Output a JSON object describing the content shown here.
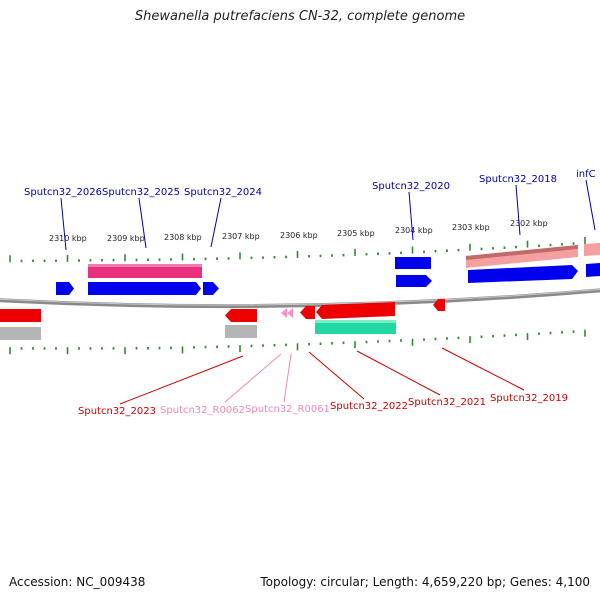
{
  "title": "Shewanella putrefaciens CN-32, complete genome",
  "footer": {
    "accession": "Accession: NC_009438",
    "stats": "Topology: circular; Length: 4,659,220 bp; Genes: 4,100"
  },
  "colors": {
    "backbone": "#888888",
    "tick": "#2e8b2e",
    "cds_forward": "#0000ee",
    "cds_reverse": "#ee0000",
    "rna": "#ff8fc0",
    "pseudo_gray": "#b5b5b5",
    "forward_hit": "#e8307e",
    "forward_pale": "#f4a0a0",
    "reverse_hit": "#20d8a0",
    "label_forward": "#0000aa",
    "label_reverse": "#cc0000",
    "label_rna": "#ee88b8"
  },
  "scale_labels": [
    "2310 kbp",
    "2309 kbp",
    "2308 kbp",
    "2307 kbp",
    "2306 kbp",
    "2305 kbp",
    "2304 kbp",
    "2303 kbp",
    "2302 kbp"
  ],
  "forward_genes": [
    "Sputcn32_2026",
    "Sputcn32_2025",
    "Sputcn32_2024",
    "Sputcn32_2020",
    "Sputcn32_2018",
    "infC"
  ],
  "reverse_genes": [
    "Sputcn32_2023",
    "Sputcn32_R0062",
    "Sputcn32_R0061",
    "Sputcn32_2022",
    "Sputcn32_2021",
    "Sputcn32_2019"
  ],
  "legend_note": ""
}
